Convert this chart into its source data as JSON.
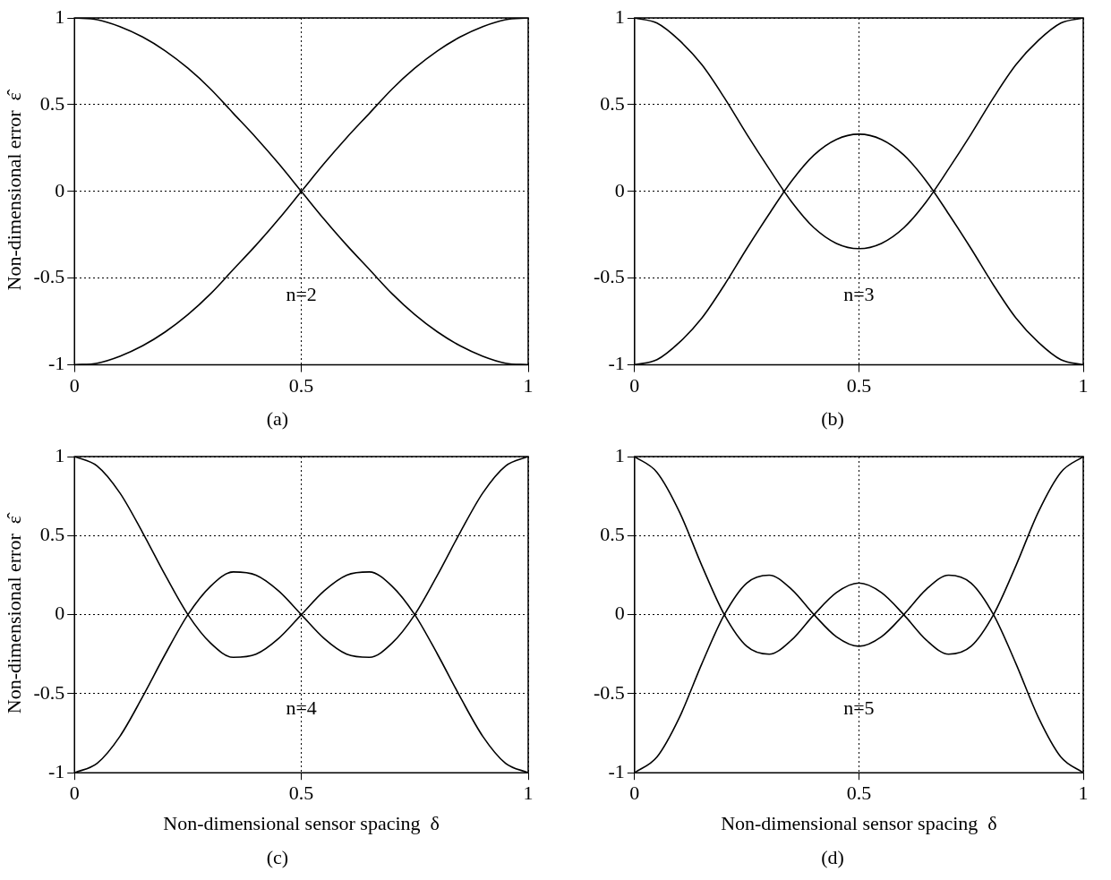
{
  "chart_data": [
    {
      "type": "line",
      "ylabel": "Non-dimensional error  ε̂",
      "x": [
        0,
        0.05,
        0.1,
        0.15,
        0.2,
        0.25,
        0.3,
        0.35,
        0.4,
        0.45,
        0.5,
        0.55,
        0.6,
        0.65,
        0.7,
        0.75,
        0.8,
        0.85,
        0.9,
        0.95,
        1
      ],
      "xlim": [
        0,
        1
      ],
      "xticks": [
        0,
        0.5,
        1
      ],
      "ylim": [
        -1,
        1
      ],
      "yticks": [
        -1,
        -0.5,
        0,
        0.5,
        1
      ],
      "grid": true,
      "legend": false,
      "annotations": [
        "n=2",
        "(a)"
      ],
      "series": [
        {
          "color": "#000000",
          "values": [
            1,
            0.99,
            0.95,
            0.89,
            0.81,
            0.71,
            0.59,
            0.45,
            0.31,
            0.16,
            0,
            -0.16,
            -0.31,
            -0.45,
            -0.59,
            -0.71,
            -0.81,
            -0.89,
            -0.95,
            -0.99,
            -1
          ]
        },
        {
          "color": "#000000",
          "values": [
            -1,
            -0.99,
            -0.95,
            -0.89,
            -0.81,
            -0.71,
            -0.59,
            -0.45,
            -0.31,
            -0.16,
            0,
            0.16,
            0.31,
            0.45,
            0.59,
            0.71,
            0.81,
            0.89,
            0.95,
            0.99,
            1
          ]
        }
      ]
    },
    {
      "type": "line",
      "x": [
        0,
        0.05,
        0.1,
        0.15,
        0.2,
        0.25,
        0.3,
        0.35,
        0.4,
        0.45,
        0.5,
        0.55,
        0.6,
        0.65,
        0.7,
        0.75,
        0.8,
        0.85,
        0.9,
        0.95,
        1
      ],
      "xlim": [
        0,
        1
      ],
      "xticks": [
        0,
        0.5,
        1
      ],
      "ylim": [
        -1,
        1
      ],
      "yticks": [
        -1,
        -0.5,
        0,
        0.5,
        1
      ],
      "grid": true,
      "legend": false,
      "annotations": [
        "n=3",
        "(b)"
      ],
      "series": [
        {
          "color": "#000000",
          "values": [
            1,
            0.97,
            0.87,
            0.73,
            0.54,
            0.33,
            0.13,
            -0.06,
            -0.21,
            -0.3,
            -0.33,
            -0.3,
            -0.21,
            -0.06,
            0.13,
            0.33,
            0.54,
            0.73,
            0.87,
            0.97,
            1
          ]
        },
        {
          "color": "#000000",
          "values": [
            -1,
            -0.97,
            -0.87,
            -0.73,
            -0.54,
            -0.33,
            -0.13,
            0.06,
            0.21,
            0.3,
            0.33,
            0.3,
            0.21,
            0.06,
            -0.13,
            -0.33,
            -0.54,
            -0.73,
            -0.87,
            -0.97,
            -1
          ]
        }
      ]
    },
    {
      "type": "line",
      "xlabel": "Non-dimensional sensor spacing  δ",
      "ylabel": "Non-dimensional error  ε̂",
      "x": [
        0,
        0.05,
        0.1,
        0.15,
        0.2,
        0.25,
        0.3,
        0.35,
        0.4,
        0.45,
        0.5,
        0.55,
        0.6,
        0.65,
        0.7,
        0.75,
        0.8,
        0.85,
        0.9,
        0.95,
        1
      ],
      "xlim": [
        0,
        1
      ],
      "xticks": [
        0,
        0.5,
        1
      ],
      "ylim": [
        -1,
        1
      ],
      "yticks": [
        -1,
        -0.5,
        0,
        0.5,
        1
      ],
      "grid": true,
      "legend": false,
      "annotations": [
        "n=4",
        "(c)"
      ],
      "series": [
        {
          "color": "#000000",
          "values": [
            1,
            0.94,
            0.77,
            0.52,
            0.25,
            0,
            -0.18,
            -0.27,
            -0.25,
            -0.15,
            0,
            0.15,
            0.25,
            0.27,
            0.18,
            0,
            -0.25,
            -0.52,
            -0.77,
            -0.94,
            -1
          ]
        },
        {
          "color": "#000000",
          "values": [
            -1,
            -0.94,
            -0.77,
            -0.52,
            -0.25,
            0,
            0.18,
            0.27,
            0.25,
            0.15,
            0,
            -0.15,
            -0.25,
            -0.27,
            -0.18,
            0,
            0.25,
            0.52,
            0.77,
            0.94,
            1
          ]
        }
      ]
    },
    {
      "type": "line",
      "xlabel": "Non-dimensional sensor spacing  δ",
      "x": [
        0,
        0.05,
        0.1,
        0.15,
        0.2,
        0.25,
        0.3,
        0.35,
        0.4,
        0.45,
        0.5,
        0.55,
        0.6,
        0.65,
        0.7,
        0.75,
        0.8,
        0.85,
        0.9,
        0.95,
        1
      ],
      "xlim": [
        0,
        1
      ],
      "xticks": [
        0,
        0.5,
        1
      ],
      "ylim": [
        -1,
        1
      ],
      "yticks": [
        -1,
        -0.5,
        0,
        0.5,
        1
      ],
      "grid": true,
      "legend": false,
      "annotations": [
        "n=5",
        "(d)"
      ],
      "series": [
        {
          "color": "#000000",
          "values": [
            1,
            0.9,
            0.65,
            0.31,
            0,
            -0.2,
            -0.25,
            -0.16,
            0,
            0.14,
            0.2,
            0.14,
            0,
            -0.16,
            -0.25,
            -0.2,
            0,
            0.31,
            0.65,
            0.9,
            1
          ]
        },
        {
          "color": "#000000",
          "values": [
            -1,
            -0.9,
            -0.65,
            -0.31,
            0,
            0.2,
            0.25,
            0.16,
            0,
            -0.14,
            -0.2,
            -0.14,
            0,
            0.16,
            0.25,
            0.2,
            0,
            -0.31,
            -0.65,
            -0.9,
            -1
          ]
        }
      ]
    }
  ]
}
